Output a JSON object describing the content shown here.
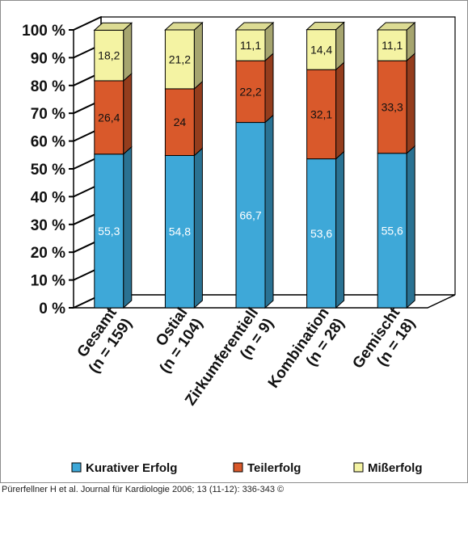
{
  "chart_data": {
    "type": "bar",
    "stacked": true,
    "style": "3d",
    "categories": [
      [
        "Gesamt",
        "(n = 159)"
      ],
      [
        "Ostial",
        "(n = 104)"
      ],
      [
        "Zirkumferentiell",
        "(n = 9)"
      ],
      [
        "Kombination",
        "(n = 28)"
      ],
      [
        "Gemischt",
        "(n = 18)"
      ]
    ],
    "series": [
      {
        "name": "Kurativer Erfolg",
        "values": [
          55.3,
          54.8,
          66.7,
          53.6,
          55.6
        ],
        "labels": [
          "55,3",
          "54,8",
          "66,7",
          "53,6",
          "55,6"
        ],
        "color": "#3ea8d8"
      },
      {
        "name": "Teilerfolg",
        "values": [
          26.4,
          24,
          22.2,
          32.1,
          33.3
        ],
        "labels": [
          "26,4",
          "24",
          "22,2",
          "32,1",
          "33,3"
        ],
        "color": "#d9592b"
      },
      {
        "name": "Mißerfolg",
        "values": [
          18.2,
          21.2,
          11.1,
          14.4,
          11.1
        ],
        "labels": [
          "18,2",
          "21,2",
          "11,1",
          "14,4",
          "11,1"
        ],
        "color": "#f4f3a3"
      }
    ],
    "yticks": [
      0,
      10,
      20,
      30,
      40,
      50,
      60,
      70,
      80,
      90,
      100
    ],
    "ytick_labels": [
      "0 %",
      "10 %",
      "20 %",
      "30 %",
      "40 %",
      "50 %",
      "60 %",
      "70 %",
      "80 %",
      "90 %",
      "100 %"
    ],
    "ylim": [
      0,
      100
    ],
    "grid": false,
    "legend": "bottom",
    "title": "",
    "xlabel": "",
    "ylabel": ""
  },
  "footer": {
    "citation": "Pürerfellner H et al. Journal für Kardiologie 2006; 13 (11-12): 336-343 ©"
  }
}
